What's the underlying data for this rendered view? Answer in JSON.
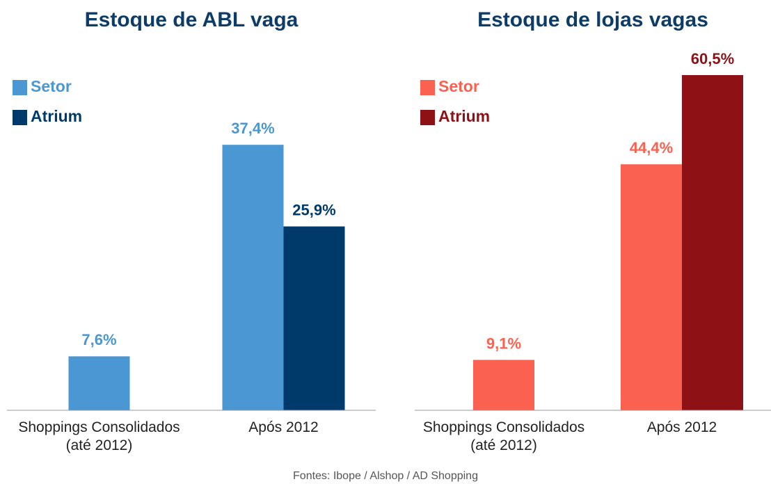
{
  "chart_data": [
    {
      "type": "bar",
      "title": "Estoque de ABL vaga",
      "categories": [
        "Shoppings Consolidados (até 2012)",
        "Após 2012"
      ],
      "series": [
        {
          "name": "Setor",
          "color": "#4a97d3",
          "values": [
            7.6,
            37.4
          ],
          "value_labels": [
            "7,6%",
            "37,4%"
          ]
        },
        {
          "name": "Atrium",
          "color": "#003a6b",
          "values": [
            null,
            25.9
          ],
          "value_labels": [
            null,
            "25,9%"
          ]
        }
      ],
      "ylim": [
        0,
        48
      ],
      "title_color": "#0d3c68"
    },
    {
      "type": "bar",
      "title": "Estoque de lojas vagas",
      "categories": [
        "Shoppings Consolidados (até 2012)",
        "Após 2012"
      ],
      "series": [
        {
          "name": "Setor",
          "color": "#fb6150",
          "values": [
            9.1,
            44.4
          ],
          "value_labels": [
            "9,1%",
            "44,4%"
          ]
        },
        {
          "name": "Atrium",
          "color": "#8e1116",
          "values": [
            null,
            60.5
          ],
          "value_labels": [
            null,
            "60,5%"
          ]
        }
      ],
      "ylim": [
        0,
        61.5
      ],
      "title_color": "#0d3c68"
    }
  ],
  "source": "Fontes: Ibope / Alshop / AD Shopping"
}
